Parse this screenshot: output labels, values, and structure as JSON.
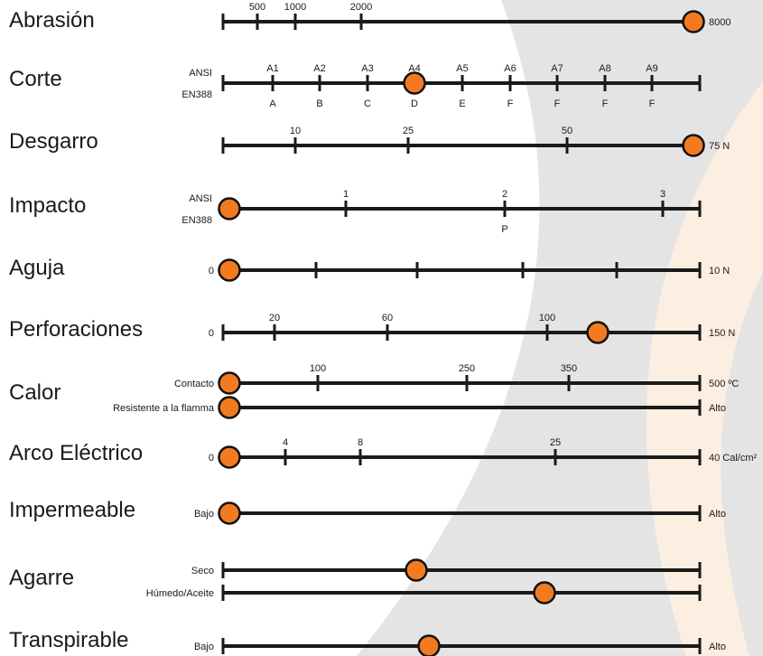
{
  "colors": {
    "track": "#1a1a1a",
    "marker": "#f37a1f",
    "marker_stroke": "#111111",
    "bg_gray": "#e4e4e4",
    "bg_peach": "#fdeee2"
  },
  "rows": [
    {
      "id": "abrasion",
      "label": "Abrasión",
      "tracks": [
        {
          "side_label": "",
          "top": [
            "500",
            "1000",
            "2000"
          ],
          "bottom": [],
          "end_label": "8000",
          "level": 1.0
        }
      ]
    },
    {
      "id": "corte",
      "label": "Corte",
      "tracks": [
        {
          "side_top": "ANSI",
          "side_bottom": "EN388",
          "top": [
            "A1",
            "A2",
            "A3",
            "A4",
            "A5",
            "A6",
            "A7",
            "A8",
            "A9"
          ],
          "bottom": [
            "A",
            "B",
            "C",
            "D",
            "E",
            "F",
            "F",
            "F",
            "F"
          ],
          "end_label": "",
          "level": "A4"
        }
      ]
    },
    {
      "id": "desgarro",
      "label": "Desgarro",
      "tracks": [
        {
          "side_label": "",
          "top": [
            "10",
            "25",
            "50"
          ],
          "bottom": [],
          "end_label": "75 N",
          "level": 1.0
        }
      ]
    },
    {
      "id": "impacto",
      "label": "Impacto",
      "tracks": [
        {
          "side_top": "ANSI",
          "side_bottom": "EN388",
          "top": [
            "1",
            "2",
            "3"
          ],
          "bottom": [
            "",
            "P",
            ""
          ],
          "end_label": "",
          "level": 0
        }
      ]
    },
    {
      "id": "aguja",
      "label": "Aguja",
      "tracks": [
        {
          "side_label": "0",
          "top": [],
          "bottom": [],
          "end_label": "10 N",
          "level": 0
        }
      ]
    },
    {
      "id": "perforaciones",
      "label": "Perforaciones",
      "tracks": [
        {
          "side_label": "0",
          "top": [
            "20",
            "60",
            "100"
          ],
          "bottom": [],
          "end_label": "150 N",
          "level": 0.78
        }
      ]
    },
    {
      "id": "calor",
      "label": "Calor",
      "tracks": [
        {
          "side_label": "Contacto",
          "top": [
            "100",
            "250",
            "350"
          ],
          "bottom": [],
          "end_label": "500 ºC",
          "level": 0
        },
        {
          "side_label": "Resistente a la flamma",
          "top": [],
          "bottom": [],
          "end_label": "Alto",
          "level": 0
        }
      ]
    },
    {
      "id": "arco",
      "label": "Arco Eléctrico",
      "tracks": [
        {
          "side_label": "0",
          "top": [
            "4",
            "8",
            "25"
          ],
          "bottom": [],
          "end_label": "40 Cal/cm²",
          "level": 0
        }
      ]
    },
    {
      "id": "impermeable",
      "label": "Impermeable",
      "tracks": [
        {
          "side_label": "Bajo",
          "top": [],
          "bottom": [],
          "end_label": "Alto",
          "level": 0
        }
      ]
    },
    {
      "id": "agarre",
      "label": "Agarre",
      "tracks": [
        {
          "side_label": "Seco",
          "top": [],
          "bottom": [],
          "end_label": "",
          "level": 0.4
        },
        {
          "side_label": "Húmedo/Aceite",
          "top": [],
          "bottom": [],
          "end_label": "",
          "level": 0.67
        }
      ]
    },
    {
      "id": "transpirable",
      "label": "Transpirable",
      "tracks": [
        {
          "side_label": "Bajo",
          "top": [],
          "bottom": [],
          "end_label": "Alto",
          "level": 0.43
        }
      ]
    }
  ]
}
